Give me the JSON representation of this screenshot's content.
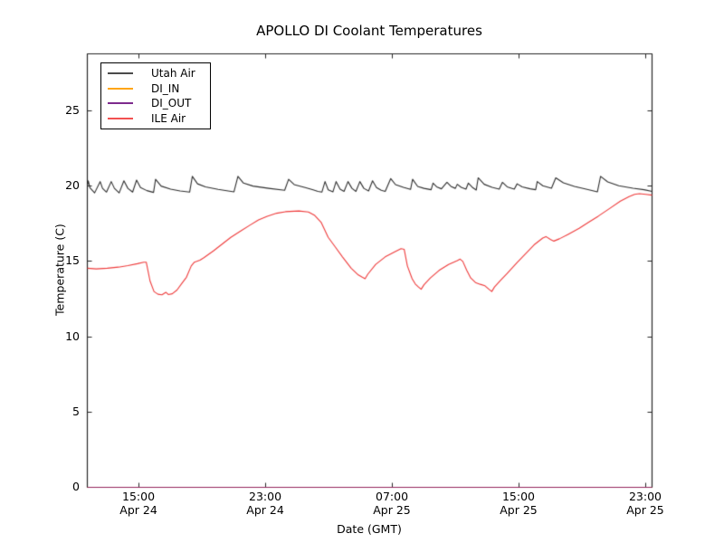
{
  "title": "APOLLO DI Coolant Temperatures",
  "axes": {
    "xlabel": "Date (GMT)",
    "ylabel": "Temperature (C)",
    "y_ticks": [
      "0",
      "5",
      "10",
      "15",
      "20",
      "25"
    ],
    "x_tick_time": [
      "15:00",
      "23:00",
      "07:00",
      "15:00",
      "23:00"
    ],
    "x_tick_date": [
      "Apr 24",
      "Apr 24",
      "Apr 25",
      "Apr 25",
      "Apr 25"
    ]
  },
  "legend": {
    "entries": [
      {
        "label": "Utah Air",
        "color": "#4a4a4a"
      },
      {
        "label": "DI_IN",
        "color": "#ffa516"
      },
      {
        "label": "DI_OUT",
        "color": "#7d2a8d"
      },
      {
        "label": "ILE Air",
        "color": "#f25050"
      }
    ]
  },
  "chart_data": {
    "type": "line",
    "title": "APOLLO DI Coolant Temperatures",
    "xlabel": "Date (GMT)",
    "ylabel": "Temperature (C)",
    "x_unit": "hours since Apr 24 00:00 GMT",
    "xlim": [
      11.74,
      47.4
    ],
    "ylim": [
      0,
      28.78
    ],
    "grid": false,
    "legend_position": "upper left",
    "x_tick_positions": [
      15,
      23,
      31,
      39,
      47
    ],
    "x_tick_labels": [
      "15:00 Apr 24",
      "23:00 Apr 24",
      "07:00 Apr 25",
      "15:00 Apr 25",
      "23:00 Apr 25"
    ],
    "y_tick_positions": [
      0,
      5,
      10,
      15,
      20,
      25
    ],
    "series": [
      {
        "name": "Utah Air",
        "color": "#2e2e2e",
        "alpha": 1,
        "points": [
          [
            11.74,
            20.0
          ],
          [
            11.8,
            20.35
          ],
          [
            11.9,
            19.9
          ],
          [
            12.2,
            19.55
          ],
          [
            12.55,
            20.3
          ],
          [
            12.7,
            19.85
          ],
          [
            12.95,
            19.6
          ],
          [
            13.25,
            20.3
          ],
          [
            13.45,
            19.85
          ],
          [
            13.75,
            19.55
          ],
          [
            14.05,
            20.35
          ],
          [
            14.3,
            19.85
          ],
          [
            14.6,
            19.6
          ],
          [
            14.85,
            20.4
          ],
          [
            15.1,
            19.9
          ],
          [
            15.5,
            19.7
          ],
          [
            15.92,
            19.58
          ],
          [
            16.05,
            20.45
          ],
          [
            16.4,
            20.0
          ],
          [
            17.0,
            19.8
          ],
          [
            17.6,
            19.68
          ],
          [
            18.2,
            19.6
          ],
          [
            18.37,
            20.65
          ],
          [
            18.7,
            20.15
          ],
          [
            19.2,
            19.95
          ],
          [
            20.0,
            19.78
          ],
          [
            21.0,
            19.62
          ],
          [
            21.25,
            20.65
          ],
          [
            21.6,
            20.2
          ],
          [
            22.2,
            20.0
          ],
          [
            23.2,
            19.85
          ],
          [
            24.2,
            19.72
          ],
          [
            24.45,
            20.45
          ],
          [
            24.8,
            20.1
          ],
          [
            25.5,
            19.9
          ],
          [
            26.0,
            19.75
          ],
          [
            26.3,
            19.65
          ],
          [
            26.55,
            19.6
          ],
          [
            26.75,
            20.3
          ],
          [
            26.95,
            19.75
          ],
          [
            27.25,
            19.62
          ],
          [
            27.45,
            20.3
          ],
          [
            27.7,
            19.8
          ],
          [
            27.95,
            19.65
          ],
          [
            28.2,
            20.3
          ],
          [
            28.45,
            19.85
          ],
          [
            28.7,
            19.65
          ],
          [
            28.95,
            20.3
          ],
          [
            29.2,
            19.85
          ],
          [
            29.5,
            19.68
          ],
          [
            29.75,
            20.35
          ],
          [
            30.0,
            19.9
          ],
          [
            30.3,
            19.72
          ],
          [
            30.55,
            19.65
          ],
          [
            30.9,
            20.5
          ],
          [
            31.2,
            20.1
          ],
          [
            31.7,
            19.92
          ],
          [
            32.15,
            19.78
          ],
          [
            32.28,
            20.45
          ],
          [
            32.6,
            19.98
          ],
          [
            33.0,
            19.85
          ],
          [
            33.45,
            19.76
          ],
          [
            33.57,
            20.2
          ],
          [
            33.8,
            19.95
          ],
          [
            34.1,
            19.82
          ],
          [
            34.45,
            20.25
          ],
          [
            34.7,
            19.98
          ],
          [
            34.98,
            19.85
          ],
          [
            35.1,
            20.12
          ],
          [
            35.35,
            19.92
          ],
          [
            35.65,
            19.8
          ],
          [
            35.8,
            20.2
          ],
          [
            36.05,
            19.92
          ],
          [
            36.3,
            19.74
          ],
          [
            36.42,
            20.55
          ],
          [
            36.8,
            20.12
          ],
          [
            37.3,
            19.92
          ],
          [
            37.75,
            19.8
          ],
          [
            37.95,
            20.25
          ],
          [
            38.25,
            19.95
          ],
          [
            38.7,
            19.8
          ],
          [
            38.88,
            20.15
          ],
          [
            39.2,
            19.95
          ],
          [
            39.7,
            19.82
          ],
          [
            40.05,
            19.76
          ],
          [
            40.15,
            20.3
          ],
          [
            40.5,
            20.02
          ],
          [
            41.05,
            19.86
          ],
          [
            41.32,
            20.55
          ],
          [
            41.8,
            20.22
          ],
          [
            42.5,
            19.98
          ],
          [
            43.3,
            19.78
          ],
          [
            43.95,
            19.62
          ],
          [
            44.15,
            20.65
          ],
          [
            44.6,
            20.28
          ],
          [
            45.3,
            20.02
          ],
          [
            46.2,
            19.86
          ],
          [
            46.9,
            19.76
          ],
          [
            47.4,
            19.65
          ]
        ]
      },
      {
        "name": "DI_IN",
        "color": "#ffa500",
        "alpha": 0.7,
        "points": [
          [
            11.74,
            0
          ],
          [
            47.4,
            0
          ]
        ]
      },
      {
        "name": "DI_OUT",
        "color": "#800080",
        "alpha": 0.7,
        "points": [
          [
            11.74,
            0
          ],
          [
            47.4,
            0
          ]
        ]
      },
      {
        "name": "ILE Air",
        "color": "#ee3b3b",
        "alpha": 1,
        "points": [
          [
            11.74,
            14.55
          ],
          [
            12.3,
            14.5
          ],
          [
            13.0,
            14.55
          ],
          [
            13.7,
            14.62
          ],
          [
            14.3,
            14.72
          ],
          [
            14.9,
            14.85
          ],
          [
            15.3,
            14.95
          ],
          [
            15.46,
            14.95
          ],
          [
            15.7,
            13.7
          ],
          [
            15.95,
            13.0
          ],
          [
            16.2,
            12.82
          ],
          [
            16.45,
            12.78
          ],
          [
            16.7,
            12.95
          ],
          [
            16.85,
            12.8
          ],
          [
            17.1,
            12.85
          ],
          [
            17.4,
            13.1
          ],
          [
            17.75,
            13.6
          ],
          [
            18.0,
            13.95
          ],
          [
            18.3,
            14.7
          ],
          [
            18.5,
            14.95
          ],
          [
            18.65,
            15.0
          ],
          [
            18.85,
            15.08
          ],
          [
            19.1,
            15.25
          ],
          [
            19.7,
            15.7
          ],
          [
            20.25,
            16.15
          ],
          [
            20.8,
            16.6
          ],
          [
            21.4,
            17.0
          ],
          [
            22.0,
            17.4
          ],
          [
            22.55,
            17.75
          ],
          [
            23.1,
            18.0
          ],
          [
            23.7,
            18.2
          ],
          [
            24.25,
            18.3
          ],
          [
            25.1,
            18.35
          ],
          [
            25.7,
            18.28
          ],
          [
            26.1,
            18.05
          ],
          [
            26.5,
            17.6
          ],
          [
            26.95,
            16.6
          ],
          [
            27.4,
            15.95
          ],
          [
            27.85,
            15.3
          ],
          [
            28.4,
            14.55
          ],
          [
            28.85,
            14.1
          ],
          [
            29.1,
            13.95
          ],
          [
            29.28,
            13.85
          ],
          [
            29.45,
            14.15
          ],
          [
            29.95,
            14.8
          ],
          [
            30.55,
            15.3
          ],
          [
            31.1,
            15.6
          ],
          [
            31.55,
            15.85
          ],
          [
            31.75,
            15.8
          ],
          [
            31.95,
            14.7
          ],
          [
            32.25,
            13.85
          ],
          [
            32.45,
            13.5
          ],
          [
            32.65,
            13.3
          ],
          [
            32.82,
            13.15
          ],
          [
            33.0,
            13.45
          ],
          [
            33.4,
            13.9
          ],
          [
            33.95,
            14.4
          ],
          [
            34.55,
            14.8
          ],
          [
            35.1,
            15.05
          ],
          [
            35.28,
            15.15
          ],
          [
            35.45,
            15.0
          ],
          [
            35.7,
            14.4
          ],
          [
            35.95,
            13.9
          ],
          [
            36.25,
            13.6
          ],
          [
            36.55,
            13.48
          ],
          [
            36.85,
            13.38
          ],
          [
            37.1,
            13.15
          ],
          [
            37.28,
            13.0
          ],
          [
            37.45,
            13.3
          ],
          [
            37.8,
            13.7
          ],
          [
            38.25,
            14.2
          ],
          [
            38.85,
            14.9
          ],
          [
            39.4,
            15.5
          ],
          [
            39.95,
            16.1
          ],
          [
            40.5,
            16.55
          ],
          [
            40.7,
            16.65
          ],
          [
            41.0,
            16.45
          ],
          [
            41.2,
            16.35
          ],
          [
            41.55,
            16.5
          ],
          [
            42.1,
            16.8
          ],
          [
            42.8,
            17.2
          ],
          [
            43.4,
            17.6
          ],
          [
            44.0,
            18.0
          ],
          [
            44.7,
            18.5
          ],
          [
            45.4,
            19.0
          ],
          [
            45.95,
            19.3
          ],
          [
            46.3,
            19.45
          ],
          [
            46.6,
            19.5
          ],
          [
            47.0,
            19.45
          ],
          [
            47.4,
            19.4
          ]
        ]
      }
    ]
  }
}
